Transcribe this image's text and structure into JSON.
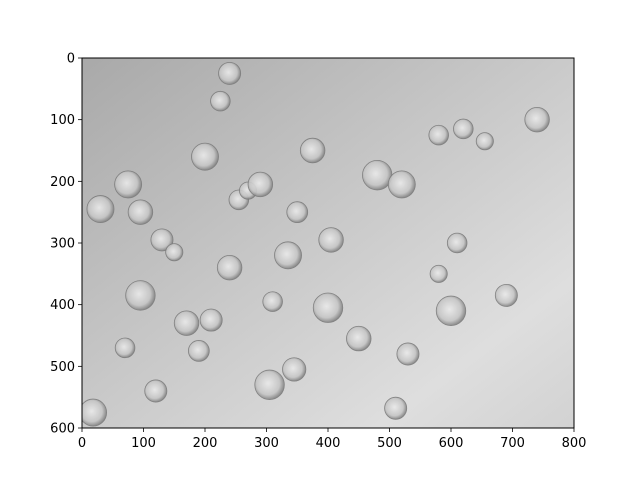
{
  "figure": {
    "x_ticks": [
      "0",
      "100",
      "200",
      "300",
      "400",
      "500",
      "600",
      "700",
      "800"
    ],
    "y_ticks": [
      "0",
      "100",
      "200",
      "300",
      "400",
      "500",
      "600"
    ],
    "xlim": [
      0,
      800
    ],
    "ylim": [
      600,
      0
    ],
    "image_colormap": "gray",
    "background_color": "#c9c9c9",
    "axes_color": "#000000"
  },
  "bubbles": [
    {
      "x": 30,
      "y": 245,
      "r": 22
    },
    {
      "x": 70,
      "y": 470,
      "r": 16
    },
    {
      "x": 75,
      "y": 205,
      "r": 22
    },
    {
      "x": 95,
      "y": 385,
      "r": 24
    },
    {
      "x": 95,
      "y": 250,
      "r": 20
    },
    {
      "x": 120,
      "y": 540,
      "r": 18
    },
    {
      "x": 130,
      "y": 295,
      "r": 18
    },
    {
      "x": 150,
      "y": 315,
      "r": 14
    },
    {
      "x": 170,
      "y": 430,
      "r": 20
    },
    {
      "x": 190,
      "y": 475,
      "r": 17
    },
    {
      "x": 210,
      "y": 425,
      "r": 18
    },
    {
      "x": 225,
      "y": 70,
      "r": 16
    },
    {
      "x": 240,
      "y": 340,
      "r": 20
    },
    {
      "x": 255,
      "y": 230,
      "r": 16
    },
    {
      "x": 270,
      "y": 215,
      "r": 14
    },
    {
      "x": 290,
      "y": 205,
      "r": 20
    },
    {
      "x": 310,
      "y": 395,
      "r": 16
    },
    {
      "x": 305,
      "y": 530,
      "r": 24
    },
    {
      "x": 335,
      "y": 320,
      "r": 22
    },
    {
      "x": 350,
      "y": 250,
      "r": 17
    },
    {
      "x": 345,
      "y": 505,
      "r": 19
    },
    {
      "x": 375,
      "y": 150,
      "r": 20
    },
    {
      "x": 400,
      "y": 405,
      "r": 24
    },
    {
      "x": 405,
      "y": 295,
      "r": 20
    },
    {
      "x": 450,
      "y": 455,
      "r": 20
    },
    {
      "x": 480,
      "y": 190,
      "r": 24
    },
    {
      "x": 520,
      "y": 205,
      "r": 22
    },
    {
      "x": 530,
      "y": 480,
      "r": 18
    },
    {
      "x": 510,
      "y": 568,
      "r": 18
    },
    {
      "x": 580,
      "y": 125,
      "r": 16
    },
    {
      "x": 600,
      "y": 410,
      "r": 24
    },
    {
      "x": 610,
      "y": 300,
      "r": 16
    },
    {
      "x": 620,
      "y": 115,
      "r": 16
    },
    {
      "x": 655,
      "y": 135,
      "r": 14
    },
    {
      "x": 690,
      "y": 385,
      "r": 18
    },
    {
      "x": 740,
      "y": 100,
      "r": 20
    },
    {
      "x": 18,
      "y": 575,
      "r": 22
    },
    {
      "x": 200,
      "y": 160,
      "r": 22
    },
    {
      "x": 240,
      "y": 25,
      "r": 18
    },
    {
      "x": 580,
      "y": 350,
      "r": 14
    }
  ]
}
